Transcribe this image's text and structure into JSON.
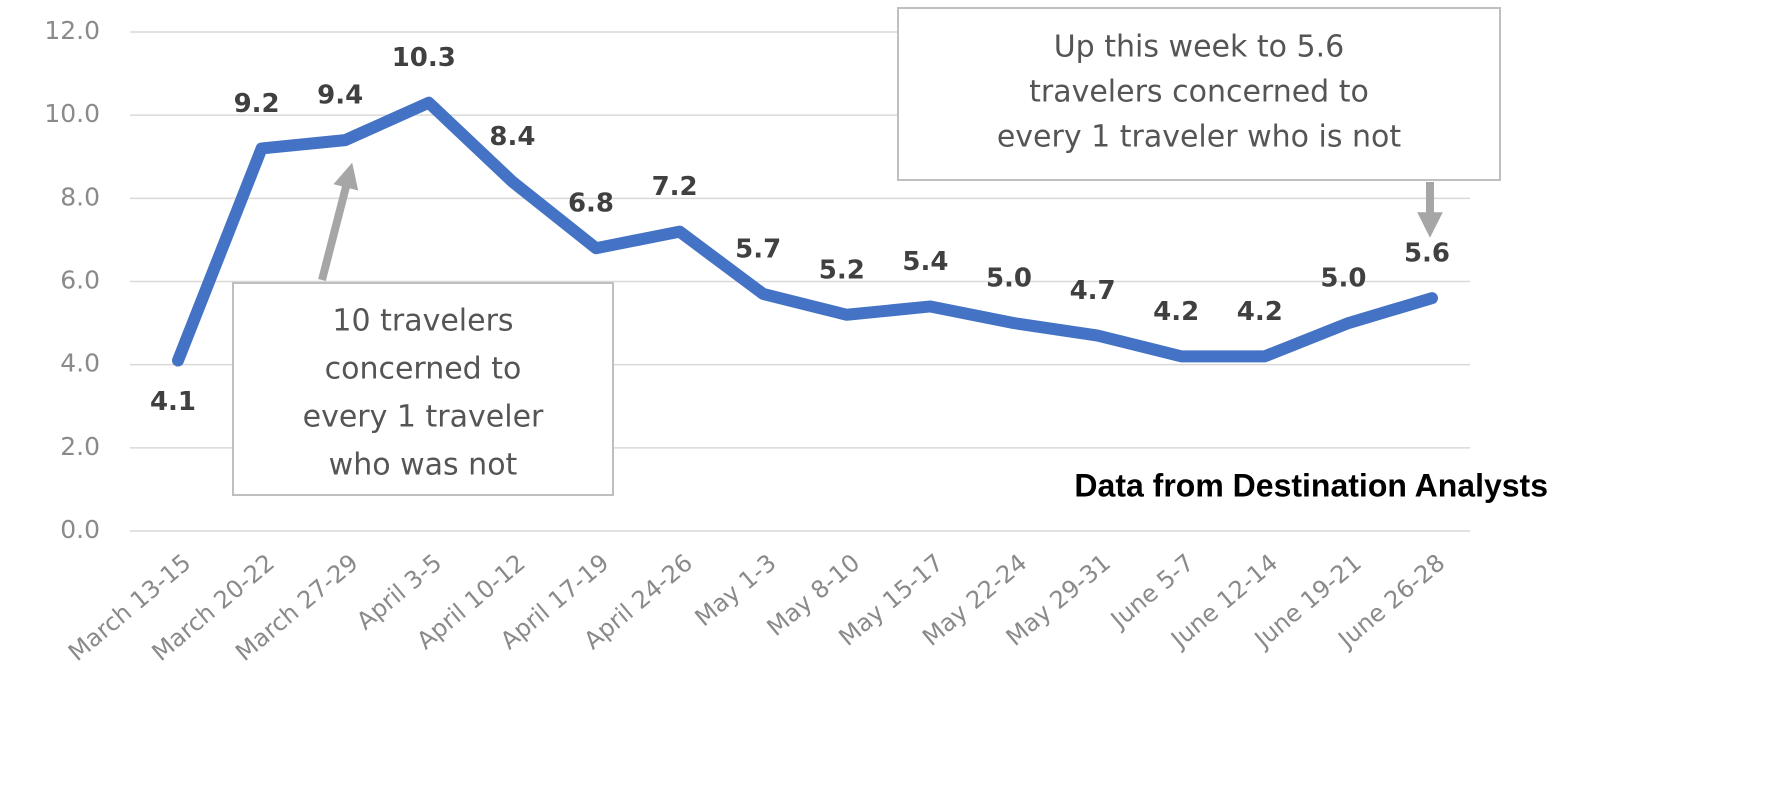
{
  "chart_data": {
    "type": "line",
    "categories": [
      "March 13-15",
      "March 20-22",
      "March 27-29",
      "April 3-5",
      "April 10-12",
      "April 17-19",
      "April 24-26",
      "May 1-3",
      "May 8-10",
      "May 15-17",
      "May 22-24",
      "May 29-31",
      "June 5-7",
      "June 12-14",
      "June 19-21",
      "June 26-28"
    ],
    "series": [
      {
        "color": "#4472c4",
        "values": [
          4.1,
          9.2,
          9.4,
          10.3,
          8.4,
          6.8,
          7.2,
          5.7,
          5.2,
          5.4,
          5.0,
          4.7,
          4.2,
          4.2,
          5.0,
          5.6
        ],
        "value_labels": [
          "4.1",
          "9.2",
          "9.4",
          "10.3",
          "8.4",
          "6.8",
          "7.2",
          "5.7",
          "5.2",
          "5.4",
          "5.0",
          "4.7",
          "4.2",
          "4.2",
          "5.0",
          "5.6"
        ]
      }
    ],
    "ylim": [
      0,
      12
    ],
    "yticks": [
      {
        "value": 0,
        "label": "0.0"
      },
      {
        "value": 2,
        "label": "2.0"
      },
      {
        "value": 4,
        "label": "4.0"
      },
      {
        "value": 6,
        "label": "6.0"
      },
      {
        "value": 8,
        "label": "8.0"
      },
      {
        "value": 10,
        "label": "10.0"
      },
      {
        "value": 12,
        "label": "12.0"
      }
    ],
    "grid": true,
    "annotations": [
      {
        "lines": [
          "10 travelers",
          "concerned to",
          "every 1 traveler",
          "who was not"
        ]
      },
      {
        "lines": [
          "Up this week to 5.6",
          "travelers concerned to",
          "every 1 traveler who is not"
        ]
      }
    ],
    "source": "Data from Destination Analysts"
  }
}
